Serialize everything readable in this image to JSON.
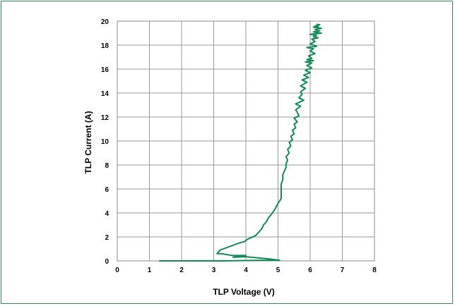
{
  "chart_data": {
    "type": "line",
    "title": "",
    "xlabel": "TLP Voltage (V)",
    "ylabel": "TLP Current (A)",
    "xlim": [
      0,
      8
    ],
    "ylim": [
      0,
      20
    ],
    "x_ticks": [
      "0",
      "1",
      "2",
      "3",
      "4",
      "5",
      "6",
      "7",
      "8"
    ],
    "y_ticks": [
      "0",
      "2",
      "4",
      "6",
      "8",
      "10",
      "12",
      "14",
      "16",
      "18",
      "20"
    ],
    "grid": true,
    "legend": "none",
    "line_color": "#138a57",
    "series": [
      {
        "x": [
          1.3,
          2.5,
          3.0,
          3.3,
          4.5,
          5.05,
          4.6,
          4.0,
          3.6,
          4.0,
          3.6,
          3.45,
          3.25,
          3.1,
          3.2,
          3.5,
          3.8,
          3.95,
          4.05,
          4.3,
          4.4,
          4.5,
          4.55,
          4.65,
          4.7,
          4.8,
          4.9,
          5.0,
          5.1,
          5.1,
          5.1,
          5.1,
          5.15,
          5.15,
          5.2,
          5.25,
          5.25,
          5.3,
          5.25,
          5.35,
          5.3,
          5.4,
          5.35,
          5.45,
          5.4,
          5.5,
          5.45,
          5.55,
          5.5,
          5.6,
          5.5,
          5.65,
          5.6,
          5.55,
          5.7,
          5.55,
          5.8,
          5.65,
          5.75,
          5.7,
          5.85,
          5.7,
          5.9,
          5.75,
          5.95,
          5.8,
          6.0,
          5.85,
          6.05,
          5.9,
          6.05,
          5.85,
          6.1,
          5.9,
          6.05,
          5.95,
          6.15,
          6.0,
          6.1,
          5.9,
          6.2,
          6.0,
          6.15,
          6.05,
          6.25,
          6.1,
          6.2,
          6.0,
          6.35,
          6.1,
          6.3,
          6.15,
          6.35,
          6.1,
          6.25,
          6.15,
          6.3,
          6.2
        ],
        "y": [
          0.0,
          0.0,
          0.0,
          0.0,
          0.05,
          0.05,
          0.2,
          0.35,
          0.3,
          0.45,
          0.45,
          0.5,
          0.6,
          0.6,
          0.9,
          1.2,
          1.5,
          1.6,
          1.8,
          2.1,
          2.4,
          2.7,
          3.0,
          3.3,
          3.6,
          3.9,
          4.3,
          4.8,
          5.2,
          5.6,
          6.0,
          6.4,
          6.8,
          7.2,
          7.5,
          7.8,
          8.1,
          8.4,
          8.7,
          9.0,
          9.3,
          9.6,
          9.9,
          10.1,
          10.4,
          10.6,
          10.9,
          11.1,
          11.4,
          11.6,
          11.9,
          12.1,
          12.4,
          12.6,
          12.9,
          13.1,
          13.4,
          13.6,
          13.9,
          14.1,
          14.4,
          14.6,
          14.9,
          15.1,
          15.3,
          15.5,
          15.7,
          15.9,
          16.1,
          16.3,
          16.5,
          16.6,
          16.7,
          16.8,
          16.9,
          17.1,
          17.3,
          17.5,
          17.7,
          17.8,
          17.9,
          18.1,
          18.3,
          18.5,
          18.6,
          18.7,
          18.8,
          18.9,
          19.0,
          19.1,
          19.2,
          19.3,
          19.4,
          19.5,
          19.55,
          19.6,
          19.7,
          19.75
        ]
      }
    ]
  }
}
